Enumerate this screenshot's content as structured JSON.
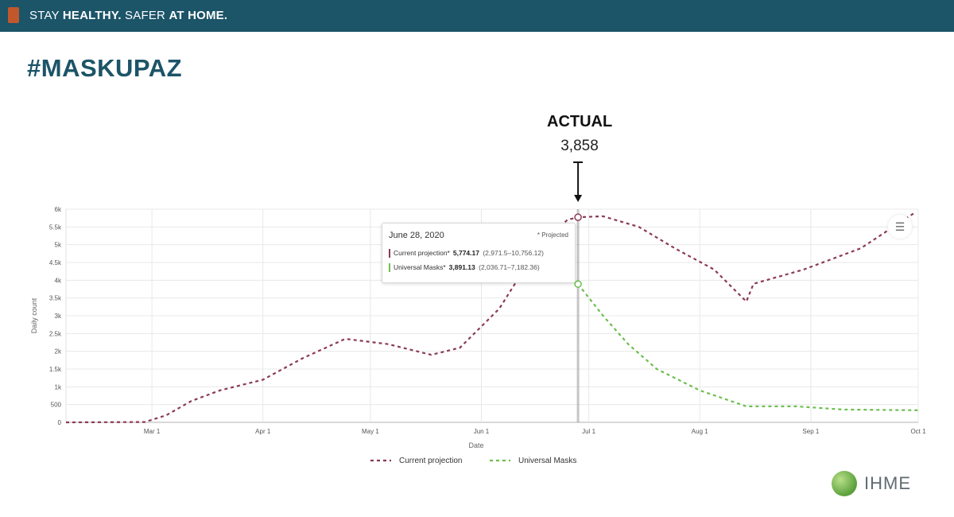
{
  "header": {
    "slogan_pre": "STAY ",
    "slogan_bold1": "HEALTHY.",
    "slogan_mid": " SAFER ",
    "slogan_bold2": "AT HOME.",
    "bar_color": "#1c5468"
  },
  "hashtag": "#MASKUPAZ",
  "annotation": {
    "label": "ACTUAL",
    "value": "3,858"
  },
  "tooltip": {
    "date": "June 28, 2020",
    "projected_note": "* Projected",
    "rows": [
      {
        "name": "Current projection*",
        "value": "5,774.17",
        "ci": "(2,971.5–10,756.12)",
        "color": "#8b3a55"
      },
      {
        "name": "Universal Masks*",
        "value": "3,891.13",
        "ci": "(2,036.71–7,182.36)",
        "color": "#6cbf4f"
      }
    ]
  },
  "logo": {
    "text": "IHME"
  },
  "menu_icon": "hamburger-menu-icon",
  "chart_data": {
    "type": "line",
    "title": "",
    "xlabel": "Date",
    "ylabel": "Daily count",
    "ylim": [
      0,
      6000
    ],
    "y_ticks": [
      0,
      500,
      1000,
      1500,
      2000,
      2500,
      3000,
      3500,
      4000,
      4500,
      5000,
      5500,
      6000
    ],
    "y_tick_labels": [
      "0",
      "500",
      "1k",
      "1.5k",
      "2k",
      "2.5k",
      "3k",
      "3.5k",
      "4k",
      "4.5k",
      "5k",
      "5.5k",
      "6k"
    ],
    "x_range": [
      "2020-02-06",
      "2020-10-01"
    ],
    "x_ticks": [
      "2020-03-01",
      "2020-04-01",
      "2020-05-01",
      "2020-06-01",
      "2020-07-01",
      "2020-08-01",
      "2020-09-01",
      "2020-10-01"
    ],
    "x_tick_labels": [
      "Mar 1",
      "Apr 1",
      "May 1",
      "Jun 1",
      "Jul 1",
      "Aug 1",
      "Sep 1",
      "Oct 1"
    ],
    "grid": true,
    "legend_position": "bottom-center",
    "highlight_date": "2020-06-28",
    "series": [
      {
        "name": "Current projection",
        "color": "#8b3a55",
        "dash": true,
        "points": [
          [
            "2020-02-06",
            0
          ],
          [
            "2020-02-28",
            10
          ],
          [
            "2020-03-05",
            200
          ],
          [
            "2020-03-12",
            600
          ],
          [
            "2020-03-20",
            900
          ],
          [
            "2020-04-01",
            1200
          ],
          [
            "2020-04-12",
            1800
          ],
          [
            "2020-04-24",
            2350
          ],
          [
            "2020-05-06",
            2200
          ],
          [
            "2020-05-18",
            1900
          ],
          [
            "2020-05-26",
            2100
          ],
          [
            "2020-06-06",
            3200
          ],
          [
            "2020-06-16",
            4800
          ],
          [
            "2020-06-25",
            5700
          ],
          [
            "2020-06-28",
            5774
          ],
          [
            "2020-07-05",
            5800
          ],
          [
            "2020-07-15",
            5500
          ],
          [
            "2020-07-25",
            4900
          ],
          [
            "2020-08-05",
            4300
          ],
          [
            "2020-08-14",
            3400
          ],
          [
            "2020-08-16",
            3900
          ],
          [
            "2020-08-30",
            4300
          ],
          [
            "2020-09-15",
            4900
          ],
          [
            "2020-09-30",
            5900
          ]
        ]
      },
      {
        "name": "Universal Masks",
        "color": "#6cbf4f",
        "dash": true,
        "points": [
          [
            "2020-06-28",
            3891
          ],
          [
            "2020-07-05",
            3000
          ],
          [
            "2020-07-12",
            2200
          ],
          [
            "2020-07-20",
            1500
          ],
          [
            "2020-08-01",
            900
          ],
          [
            "2020-08-14",
            450
          ],
          [
            "2020-08-28",
            450
          ],
          [
            "2020-09-10",
            360
          ],
          [
            "2020-10-01",
            340
          ]
        ]
      }
    ]
  }
}
